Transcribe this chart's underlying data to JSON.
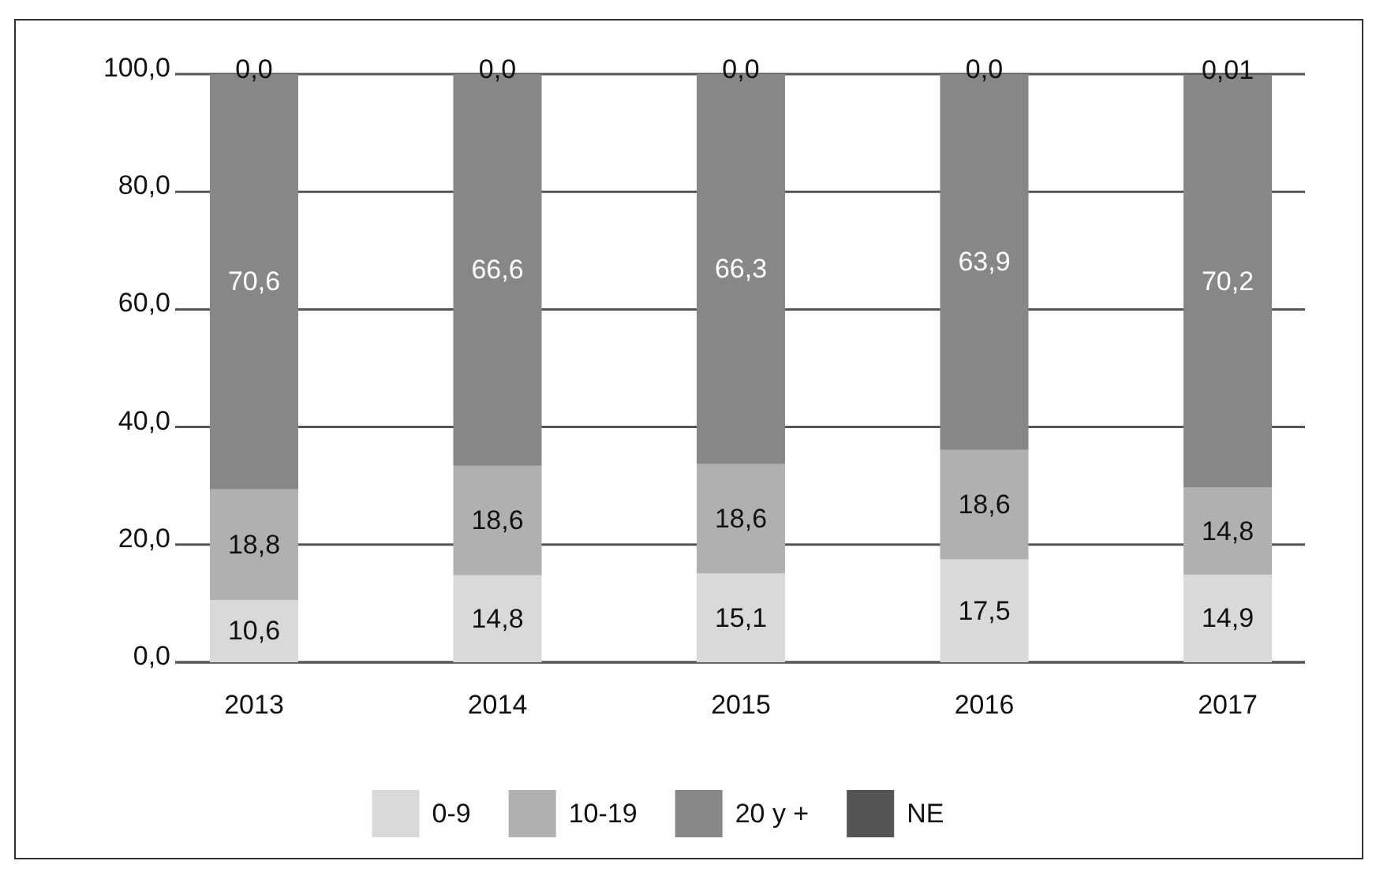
{
  "chart_data": {
    "type": "bar",
    "stacked": true,
    "categories": [
      "2013",
      "2014",
      "2015",
      "2016",
      "2017"
    ],
    "series": [
      {
        "name": "0-9",
        "color": "#d9d9d9",
        "values": [
          10.6,
          14.8,
          15.1,
          17.5,
          14.9
        ],
        "value_labels": [
          "10,6",
          "14,8",
          "15,1",
          "17,5",
          "14,9"
        ]
      },
      {
        "name": "10-19",
        "color": "#b0b0b0",
        "values": [
          18.8,
          18.6,
          18.6,
          18.6,
          14.8
        ],
        "value_labels": [
          "18,8",
          "18,6",
          "18,6",
          "18,6",
          "14,8"
        ]
      },
      {
        "name": "20 y +",
        "color": "#878787",
        "values": [
          70.6,
          66.6,
          66.3,
          63.9,
          70.2
        ],
        "value_labels": [
          "70,6",
          "66,6",
          "66,3",
          "63,9",
          "70,2"
        ]
      },
      {
        "name": "NE",
        "color": "#545454",
        "values": [
          0.0,
          0.0,
          0.0,
          0.0,
          0.01
        ],
        "value_labels": [
          "0,0",
          "0,0",
          "0,0",
          "0,0",
          "0,01"
        ]
      }
    ],
    "ylim": [
      0,
      100
    ],
    "yticks": [
      {
        "value": 0,
        "label": "0,0"
      },
      {
        "value": 20,
        "label": "20,0"
      },
      {
        "value": 40,
        "label": "40,0"
      },
      {
        "value": 60,
        "label": "60,0"
      },
      {
        "value": 80,
        "label": "80,0"
      },
      {
        "value": 100,
        "label": "100,0"
      }
    ],
    "grid": "y",
    "legend": "bottom"
  }
}
